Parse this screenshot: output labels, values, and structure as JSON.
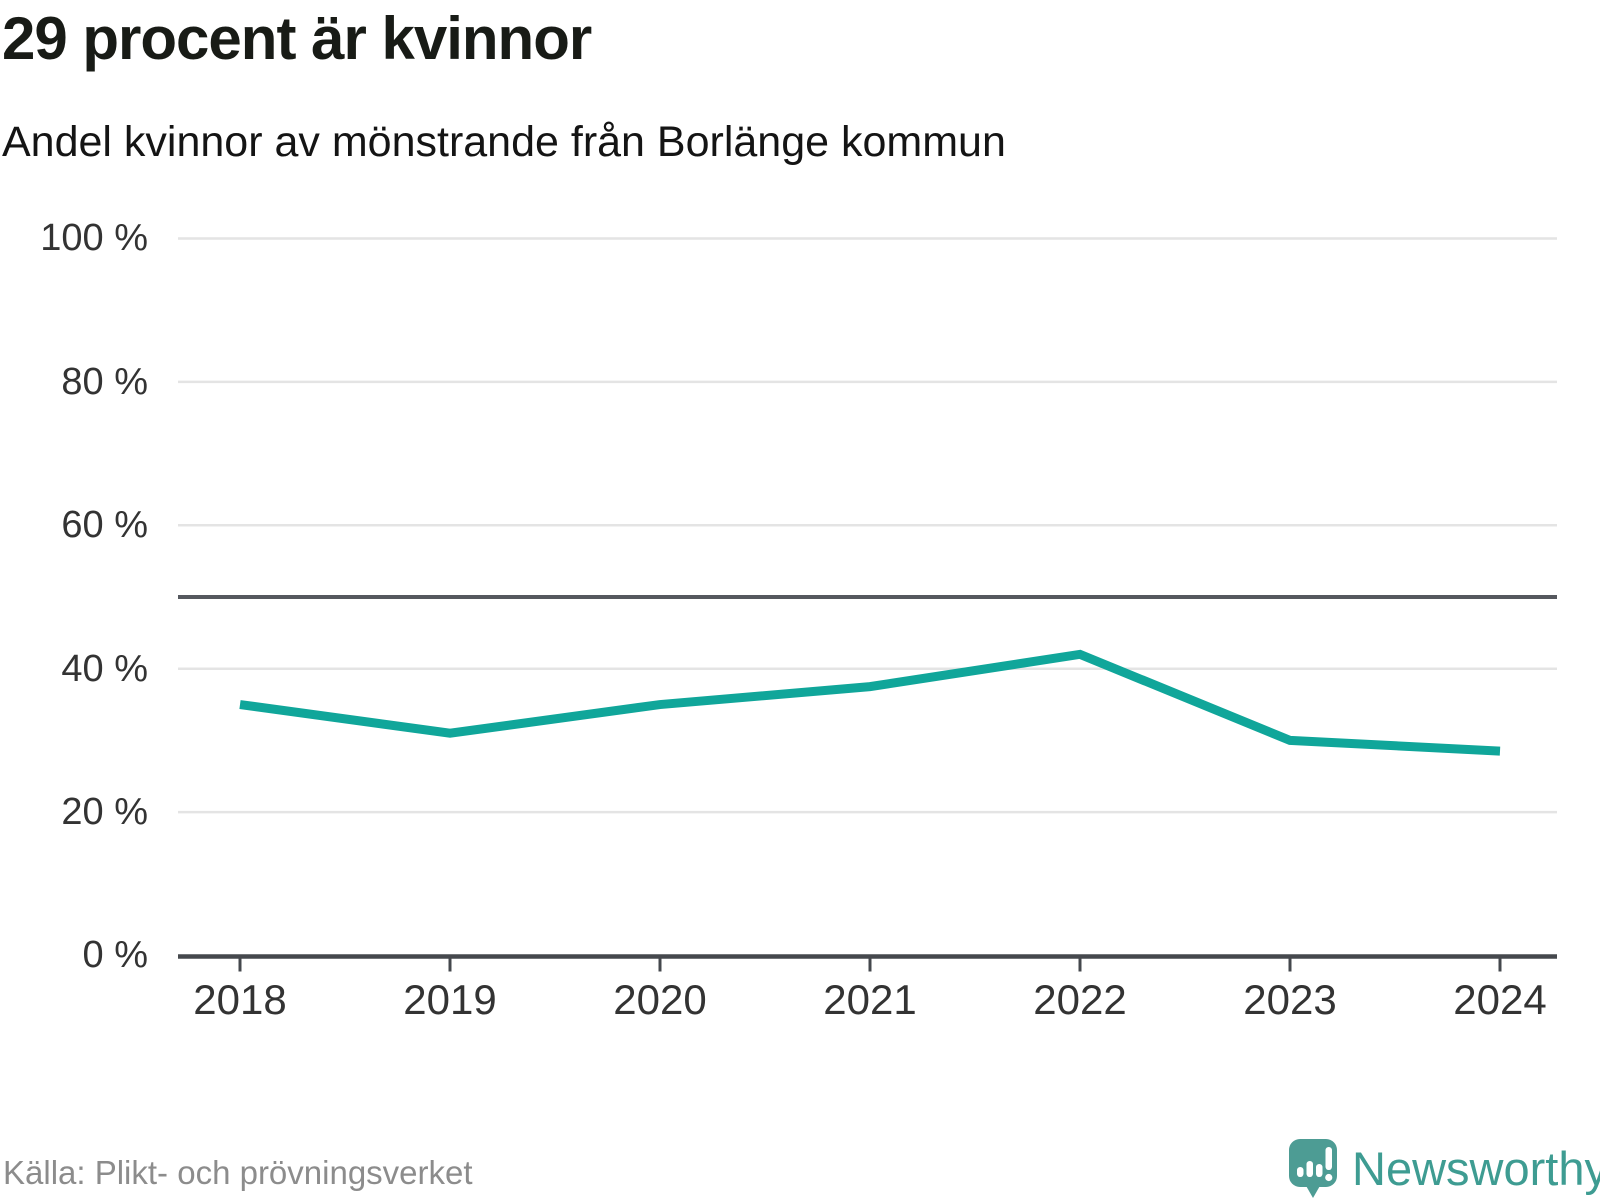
{
  "title": "29 procent är kvinnor",
  "subtitle": "Andel kvinnor av mönstrande från Borlänge kommun",
  "source": "Källa: Plikt- och prövningsverket",
  "brand": {
    "name": "Newsworthy",
    "logo_icon": "speech-bubble-bar-chart-icon"
  },
  "colors": {
    "line": "#10a69a",
    "grid": "#e4e4e4",
    "reference_line": "#55585e",
    "axis": "#45484d",
    "logo": "#4d9c94",
    "brand_text": "#3e9c92"
  },
  "chart_data": {
    "type": "line",
    "title": "29 procent är kvinnor",
    "subtitle": "Andel kvinnor av mönstrande från Borlänge kommun",
    "x": [
      2018,
      2019,
      2020,
      2021,
      2022,
      2023,
      2024
    ],
    "x_tick_labels": [
      "2018",
      "2019",
      "2020",
      "2021",
      "2022",
      "2023",
      "2024"
    ],
    "series": [
      {
        "name": "Andel kvinnor av mönstrande",
        "values": [
          35,
          31,
          35,
          37.5,
          42,
          30,
          28.5
        ]
      }
    ],
    "unit": "%",
    "ylim": [
      0,
      100
    ],
    "y_ticks": [
      0,
      20,
      40,
      60,
      80,
      100
    ],
    "y_tick_labels": [
      "0 %",
      "20 %",
      "40 %",
      "60 %",
      "80 %",
      "100 %"
    ],
    "reference_line": {
      "value": 50
    },
    "grid": "horizontal",
    "legend": "none"
  }
}
